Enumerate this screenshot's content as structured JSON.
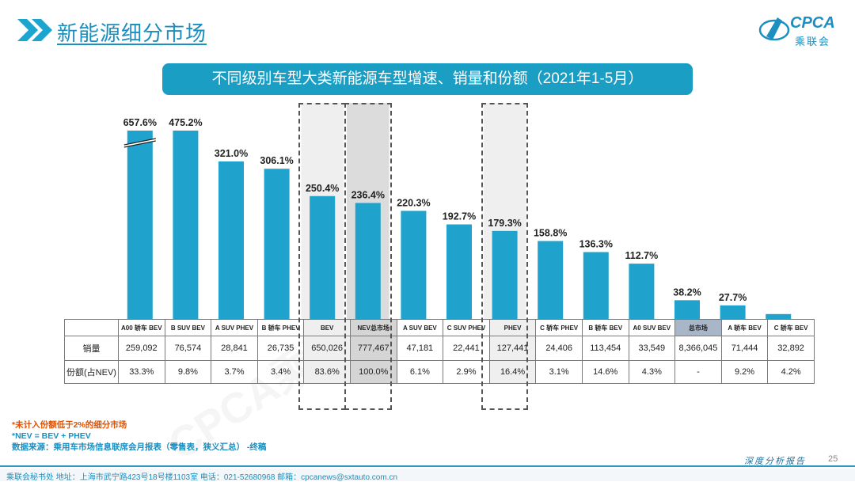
{
  "header": {
    "title": "新能源细分市场"
  },
  "logo": {
    "brand": "CPCA",
    "brand_cn": "乘联会"
  },
  "subtitle": "不同级别车型大类新能源车型增速、销量和份额（2021年1-5月）",
  "watermark": "CPCA乘联会",
  "table": {
    "sales_label": "销量",
    "share_label": "份额(占NEV)",
    "sales": [
      "259,092",
      "76,574",
      "28,841",
      "26,735",
      "650,026",
      "777,467",
      "47,181",
      "22,441",
      "127,441",
      "24,406",
      "113,454",
      "33,549",
      "8,366,045",
      "71,444",
      "32,892"
    ],
    "shares": [
      "33.3%",
      "9.8%",
      "3.7%",
      "3.4%",
      "83.6%",
      "100.0%",
      "6.1%",
      "2.9%",
      "16.4%",
      "3.1%",
      "14.6%",
      "4.3%",
      "-",
      "9.2%",
      "4.2%"
    ]
  },
  "chart_data": {
    "type": "bar",
    "title": "不同级别车型大类新能源车型增速、销量和份额（2021年1-5月）",
    "categories": [
      "A00 轿车 BEV",
      "B SUV BEV",
      "A SUV PHEV",
      "B 轿车 PHEV",
      "BEV",
      "NEV总市场",
      "A SUV BEV",
      "C SUV PHEV",
      "PHEV",
      "C 轿车 PHEV",
      "B 轿车 BEV",
      "A0 SUV BEV",
      "总市场",
      "A 轿车 BEV",
      "C 轿车 BEV"
    ],
    "values": [
      657.6,
      475.2,
      321.0,
      306.1,
      250.4,
      236.4,
      220.3,
      192.7,
      179.3,
      158.8,
      136.3,
      112.7,
      38.2,
      27.7,
      10.0
    ],
    "labels": [
      "657.6%",
      "475.2%",
      "321.0%",
      "306.1%",
      "250.4%",
      "236.4%",
      "220.3%",
      "192.7%",
      "179.3%",
      "158.8%",
      "136.3%",
      "112.7%",
      "38.2%",
      "27.7%",
      ""
    ],
    "unit": "%",
    "axis_break": "first bar truncated (657.6%)",
    "highlighted": [
      "BEV",
      "NEV总市场",
      "PHEV"
    ],
    "colors": {
      "bar": "#1fa3cc",
      "highlight_box": "#555555"
    }
  },
  "notes": [
    "*未计入份额低于2%的细分市场",
    "*NEV = BEV + PHEV",
    "数据来源：乘用车市场信息联席会月报表（零售表，狭义汇总）   -终稿"
  ],
  "footer": {
    "text": "乘联会秘书处   地址：上海市武宁路423号18号楼1103室   电话：021-52680968   邮箱：cpcanews@sxtauto.com.cn",
    "slogan": "深度分析报告",
    "page": "25"
  }
}
